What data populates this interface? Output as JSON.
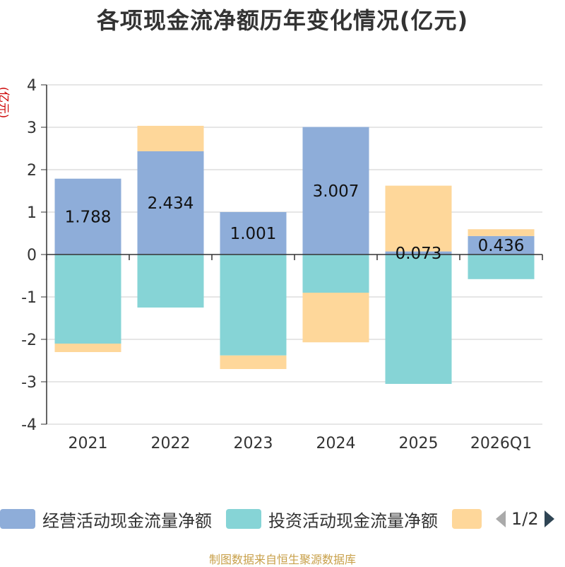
{
  "title": "各项现金流净额历年变化情况(亿元)",
  "source": "制图数据来自恒生聚源数据库",
  "pager": {
    "text": "1/2",
    "prev_icon": "triangle-left-icon",
    "next_icon": "triangle-right-icon"
  },
  "colors": {
    "operating": "#8eadd9",
    "investing": "#86d4d6",
    "financing": "#fed79a"
  },
  "legend": [
    {
      "label": "经营活动现金流量净额",
      "color": "#8eadd9"
    },
    {
      "label": "投资活动现金流量净额",
      "color": "#86d4d6"
    },
    {
      "label": "",
      "color": "#fed79a"
    }
  ],
  "chart_data": {
    "type": "bar",
    "stacked": true,
    "title": "各项现金流净额历年变化情况(亿元)",
    "ylabel": "(亿元)",
    "xlabel": "",
    "ylim": [
      -4,
      4
    ],
    "yticks": [
      4,
      3,
      2,
      1,
      0,
      -1,
      -2,
      -3,
      -4
    ],
    "categories": [
      "2021",
      "2022",
      "2023",
      "2024",
      "2025",
      "2026Q1"
    ],
    "series": [
      {
        "name": "经营活动现金流量净额",
        "values": [
          1.788,
          2.434,
          1.001,
          3.007,
          0.073,
          0.436
        ],
        "labels": [
          "1.788",
          "2.434",
          "1.001",
          "3.007",
          "0.073",
          "0.436"
        ]
      },
      {
        "name": "投资活动现金流量净额",
        "values": [
          -2.1,
          -1.25,
          -2.38,
          -0.9,
          -3.05,
          -0.58
        ]
      },
      {
        "name": "",
        "values": [
          -0.2,
          0.6,
          -0.32,
          -1.17,
          1.55,
          0.16
        ]
      }
    ]
  }
}
